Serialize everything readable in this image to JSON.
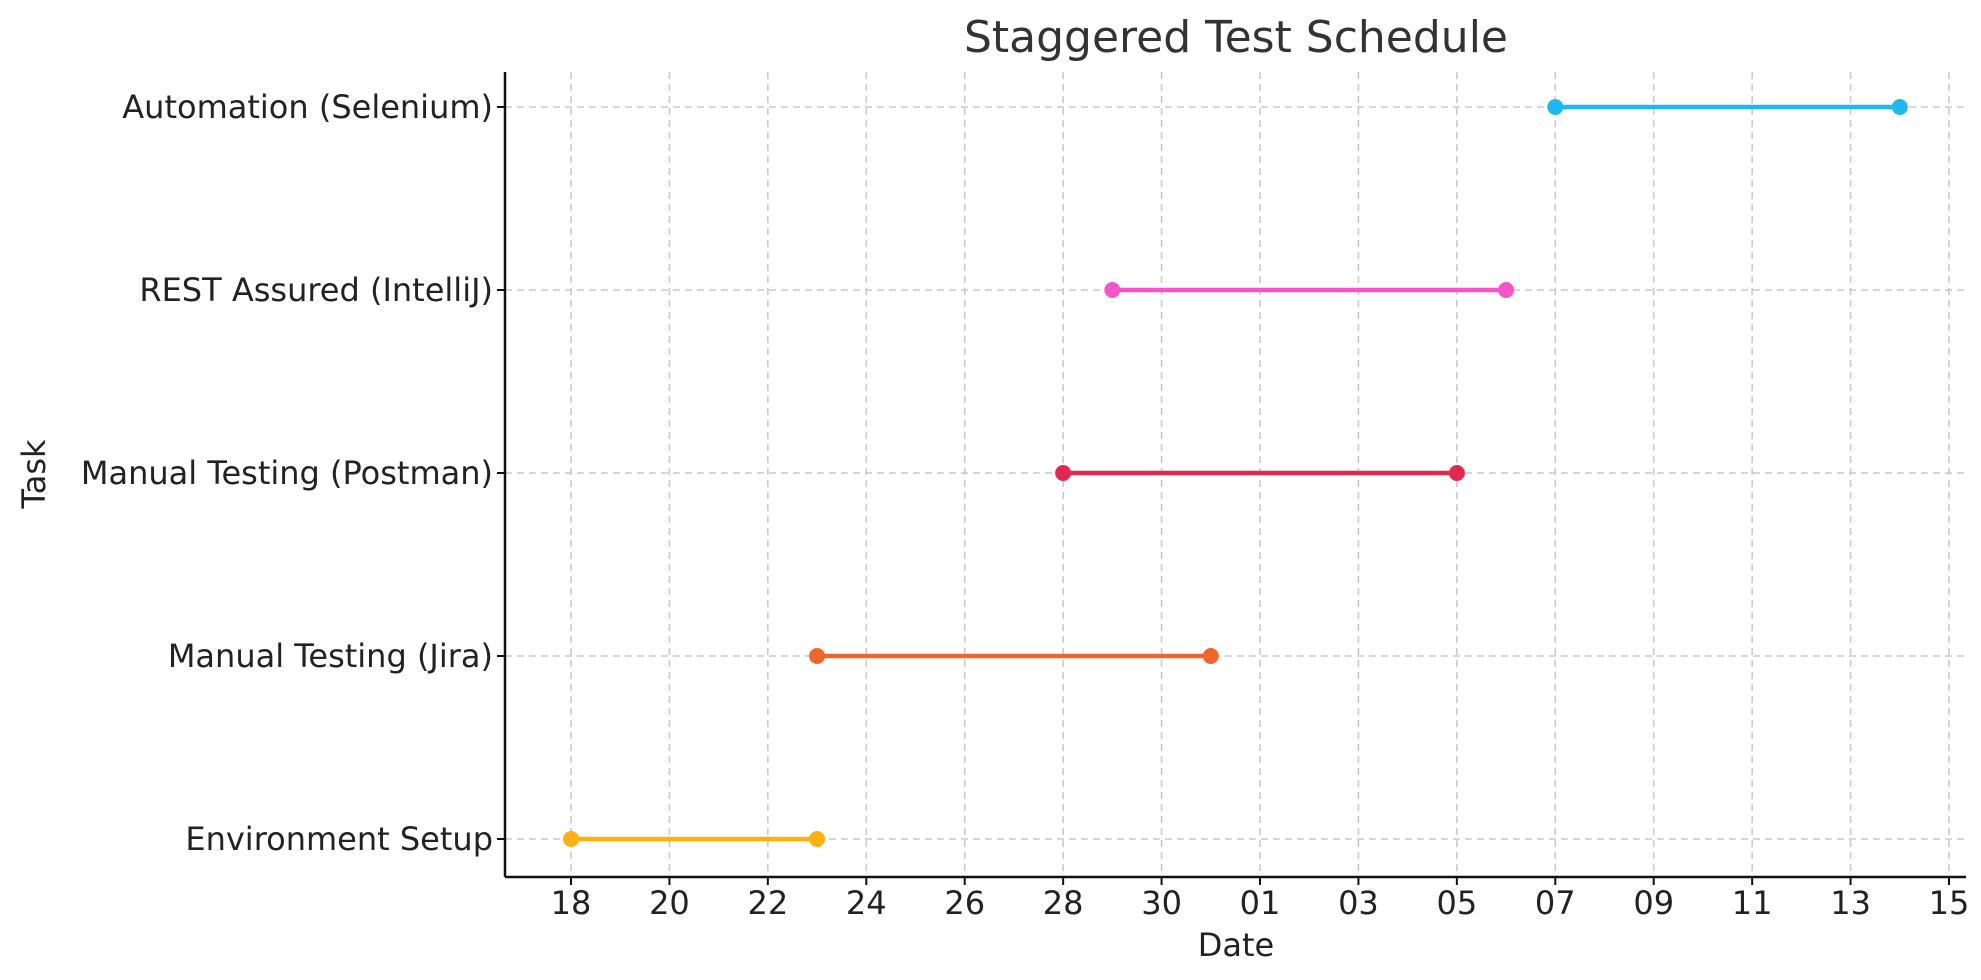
{
  "chart_data": {
    "type": "gantt",
    "title": "Staggered Test Schedule",
    "xlabel": "Date",
    "ylabel": "Task",
    "x_axis": {
      "kind": "date",
      "range": [
        "2024-10-16",
        "2024-11-15"
      ],
      "ticks": [
        {
          "date": "2024-10-18",
          "label": "18"
        },
        {
          "date": "2024-10-20",
          "label": "20"
        },
        {
          "date": "2024-10-22",
          "label": "22"
        },
        {
          "date": "2024-10-24",
          "label": "24"
        },
        {
          "date": "2024-10-26",
          "label": "26"
        },
        {
          "date": "2024-10-28",
          "label": "28"
        },
        {
          "date": "2024-10-30",
          "label": "30"
        },
        {
          "date": "2024-11-01",
          "label": "01"
        },
        {
          "date": "2024-11-03",
          "label": "03"
        },
        {
          "date": "2024-11-05",
          "label": "05"
        },
        {
          "date": "2024-11-07",
          "label": "07"
        },
        {
          "date": "2024-11-09",
          "label": "09"
        },
        {
          "date": "2024-11-11",
          "label": "11"
        },
        {
          "date": "2024-11-13",
          "label": "13"
        },
        {
          "date": "2024-11-15",
          "label": "15"
        }
      ]
    },
    "grid": true,
    "tasks": [
      {
        "name": "Environment Setup",
        "start": "2024-10-18",
        "end": "2024-10-23",
        "color": "#FFB00F"
      },
      {
        "name": "Manual Testing (Jira)",
        "start": "2024-10-23",
        "end": "2024-10-31",
        "color": "#F0652A"
      },
      {
        "name": "Manual Testing (Postman)",
        "start": "2024-10-28",
        "end": "2024-11-05",
        "color": "#E3284F"
      },
      {
        "name": "REST Assured (IntelliJ)",
        "start": "2024-10-29",
        "end": "2024-11-06",
        "color": "#F655C8"
      },
      {
        "name": "Automation (Selenium)",
        "start": "2024-11-07",
        "end": "2024-11-14",
        "color": "#20B8F2"
      }
    ]
  }
}
